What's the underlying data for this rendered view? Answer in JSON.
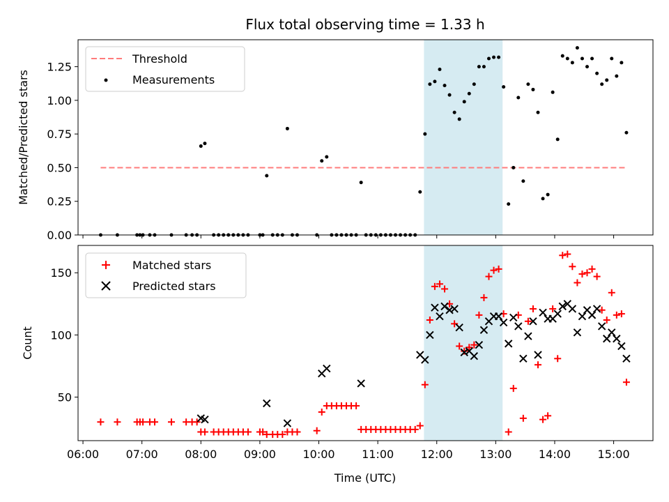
{
  "chart_data": [
    {
      "type": "scatter",
      "title": "Flux total observing time = 1.33 h",
      "ylabel": "Matched/Predicted stars",
      "xlim": [
        "05:55",
        "15:40"
      ],
      "ylim": [
        0,
        1.45
      ],
      "yticks": [
        "0.00",
        "0.25",
        "0.50",
        "0.75",
        "1.00",
        "1.25"
      ],
      "highlight_span": {
        "x_start": "11:47",
        "x_end": "13:07",
        "color": "#add8e6"
      },
      "legend": {
        "position": "top-left",
        "entries": [
          "Threshold",
          "Measurements"
        ]
      },
      "threshold": {
        "name": "Threshold",
        "y": 0.5,
        "x_start": "06:18",
        "x_end": "15:12",
        "color": "#ff7b7b"
      },
      "series": [
        {
          "name": "Measurements",
          "color": "#000000",
          "points": [
            [
              "06:18",
              0
            ],
            [
              "06:35",
              0
            ],
            [
              "06:55",
              0
            ],
            [
              "06:58",
              0
            ],
            [
              "07:01",
              0
            ],
            [
              "07:08",
              0
            ],
            [
              "07:13",
              0
            ],
            [
              "07:30",
              0
            ],
            [
              "07:45",
              0
            ],
            [
              "07:51",
              0
            ],
            [
              "07:56",
              0
            ],
            [
              "08:00",
              0.66
            ],
            [
              "08:04",
              0.68
            ],
            [
              "08:13",
              0
            ],
            [
              "08:18",
              0
            ],
            [
              "08:23",
              0
            ],
            [
              "08:28",
              0
            ],
            [
              "08:33",
              0
            ],
            [
              "08:38",
              0
            ],
            [
              "08:43",
              0
            ],
            [
              "08:48",
              0
            ],
            [
              "09:00",
              0
            ],
            [
              "09:03",
              0
            ],
            [
              "09:07",
              0.44
            ],
            [
              "09:13",
              0
            ],
            [
              "09:18",
              0
            ],
            [
              "09:23",
              0
            ],
            [
              "09:28",
              0.79
            ],
            [
              "09:33",
              0
            ],
            [
              "09:38",
              0
            ],
            [
              "09:58",
              0
            ],
            [
              "10:03",
              0.55
            ],
            [
              "10:08",
              0.58
            ],
            [
              "10:13",
              0
            ],
            [
              "10:18",
              0
            ],
            [
              "10:23",
              0
            ],
            [
              "10:28",
              0
            ],
            [
              "10:33",
              0
            ],
            [
              "10:38",
              0
            ],
            [
              "10:43",
              0.39
            ],
            [
              "10:48",
              0
            ],
            [
              "10:53",
              0
            ],
            [
              "10:58",
              0
            ],
            [
              "11:03",
              0
            ],
            [
              "11:08",
              0
            ],
            [
              "11:13",
              0
            ],
            [
              "11:18",
              0
            ],
            [
              "11:23",
              0
            ],
            [
              "11:28",
              0
            ],
            [
              "11:33",
              0
            ],
            [
              "11:38",
              0
            ],
            [
              "11:43",
              0.32
            ],
            [
              "11:48",
              0.75
            ],
            [
              "11:53",
              1.12
            ],
            [
              "11:58",
              1.14
            ],
            [
              "12:03",
              1.23
            ],
            [
              "12:08",
              1.11
            ],
            [
              "12:13",
              1.04
            ],
            [
              "12:18",
              0.91
            ],
            [
              "12:23",
              0.86
            ],
            [
              "12:28",
              0.99
            ],
            [
              "12:33",
              1.05
            ],
            [
              "12:38",
              1.12
            ],
            [
              "12:43",
              1.25
            ],
            [
              "12:48",
              1.25
            ],
            [
              "12:53",
              1.31
            ],
            [
              "12:58",
              1.32
            ],
            [
              "13:03",
              1.32
            ],
            [
              "13:08",
              1.1
            ],
            [
              "13:13",
              0.23
            ],
            [
              "13:18",
              0.5
            ],
            [
              "13:23",
              1.02
            ],
            [
              "13:28",
              0.4
            ],
            [
              "13:33",
              1.12
            ],
            [
              "13:38",
              1.08
            ],
            [
              "13:43",
              0.91
            ],
            [
              "13:48",
              0.27
            ],
            [
              "13:53",
              0.3
            ],
            [
              "13:58",
              1.06
            ],
            [
              "14:03",
              0.71
            ],
            [
              "14:08",
              1.33
            ],
            [
              "14:13",
              1.31
            ],
            [
              "14:18",
              1.28
            ],
            [
              "14:23",
              1.39
            ],
            [
              "14:28",
              1.31
            ],
            [
              "14:33",
              1.25
            ],
            [
              "14:38",
              1.31
            ],
            [
              "14:43",
              1.2
            ],
            [
              "14:48",
              1.12
            ],
            [
              "14:53",
              1.15
            ],
            [
              "14:58",
              1.31
            ],
            [
              "15:03",
              1.18
            ],
            [
              "15:08",
              1.28
            ],
            [
              "15:13",
              0.76
            ]
          ]
        }
      ]
    },
    {
      "type": "scatter",
      "xlabel": "Time (UTC)",
      "ylabel": "Count",
      "xlim": [
        "05:55",
        "15:40"
      ],
      "ylim": [
        15,
        172
      ],
      "xticks": [
        "06:00",
        "07:00",
        "08:00",
        "09:00",
        "10:00",
        "11:00",
        "12:00",
        "13:00",
        "14:00",
        "15:00"
      ],
      "yticks": [
        "50",
        "100",
        "150"
      ],
      "highlight_span": {
        "x_start": "11:47",
        "x_end": "13:07",
        "color": "#add8e6"
      },
      "legend": {
        "position": "top-left",
        "entries": [
          "Matched stars",
          "Predicted stars"
        ]
      },
      "series": [
        {
          "name": "Matched stars",
          "marker": "+",
          "color": "#ff0000",
          "points": [
            [
              "06:18",
              30
            ],
            [
              "06:35",
              30
            ],
            [
              "06:55",
              30
            ],
            [
              "06:58",
              30
            ],
            [
              "07:01",
              30
            ],
            [
              "07:08",
              30
            ],
            [
              "07:13",
              30
            ],
            [
              "07:30",
              30
            ],
            [
              "07:45",
              30
            ],
            [
              "07:51",
              30
            ],
            [
              "07:56",
              30
            ],
            [
              "08:00",
              22
            ],
            [
              "08:04",
              22
            ],
            [
              "08:13",
              22
            ],
            [
              "08:18",
              22
            ],
            [
              "08:23",
              22
            ],
            [
              "08:28",
              22
            ],
            [
              "08:33",
              22
            ],
            [
              "08:38",
              22
            ],
            [
              "08:43",
              22
            ],
            [
              "08:48",
              22
            ],
            [
              "09:00",
              22
            ],
            [
              "09:03",
              22
            ],
            [
              "09:07",
              20
            ],
            [
              "09:13",
              20
            ],
            [
              "09:18",
              20
            ],
            [
              "09:23",
              20
            ],
            [
              "09:28",
              22
            ],
            [
              "09:33",
              22
            ],
            [
              "09:38",
              22
            ],
            [
              "09:58",
              23
            ],
            [
              "10:03",
              38
            ],
            [
              "10:08",
              43
            ],
            [
              "10:13",
              43
            ],
            [
              "10:18",
              43
            ],
            [
              "10:23",
              43
            ],
            [
              "10:28",
              43
            ],
            [
              "10:33",
              43
            ],
            [
              "10:38",
              43
            ],
            [
              "10:43",
              24
            ],
            [
              "10:48",
              24
            ],
            [
              "10:53",
              24
            ],
            [
              "10:58",
              24
            ],
            [
              "11:03",
              24
            ],
            [
              "11:08",
              24
            ],
            [
              "11:13",
              24
            ],
            [
              "11:18",
              24
            ],
            [
              "11:23",
              24
            ],
            [
              "11:28",
              24
            ],
            [
              "11:33",
              24
            ],
            [
              "11:38",
              24
            ],
            [
              "11:43",
              27
            ],
            [
              "11:48",
              60
            ],
            [
              "11:53",
              112
            ],
            [
              "11:58",
              139
            ],
            [
              "12:03",
              141
            ],
            [
              "12:08",
              137
            ],
            [
              "12:13",
              125
            ],
            [
              "12:18",
              109
            ],
            [
              "12:23",
              91
            ],
            [
              "12:28",
              87
            ],
            [
              "12:33",
              90
            ],
            [
              "12:38",
              92
            ],
            [
              "12:43",
              116
            ],
            [
              "12:48",
              130
            ],
            [
              "12:53",
              147
            ],
            [
              "12:58",
              152
            ],
            [
              "13:03",
              153
            ],
            [
              "13:08",
              117
            ],
            [
              "13:13",
              22
            ],
            [
              "13:18",
              57
            ],
            [
              "13:23",
              116
            ],
            [
              "13:28",
              33
            ],
            [
              "13:33",
              111
            ],
            [
              "13:38",
              121
            ],
            [
              "13:43",
              76
            ],
            [
              "13:48",
              32
            ],
            [
              "13:53",
              35
            ],
            [
              "13:58",
              121
            ],
            [
              "14:03",
              81
            ],
            [
              "14:08",
              164
            ],
            [
              "14:13",
              165
            ],
            [
              "14:18",
              155
            ],
            [
              "14:23",
              142
            ],
            [
              "14:28",
              149
            ],
            [
              "14:33",
              150
            ],
            [
              "14:38",
              153
            ],
            [
              "14:43",
              147
            ],
            [
              "14:48",
              120
            ],
            [
              "14:53",
              112
            ],
            [
              "14:58",
              134
            ],
            [
              "15:03",
              116
            ],
            [
              "15:08",
              117
            ],
            [
              "15:13",
              62
            ]
          ]
        },
        {
          "name": "Predicted stars",
          "marker": "x",
          "color": "#000000",
          "points": [
            [
              "08:00",
              33
            ],
            [
              "08:04",
              32
            ],
            [
              "09:07",
              45
            ],
            [
              "09:28",
              29
            ],
            [
              "10:03",
              69
            ],
            [
              "10:08",
              73
            ],
            [
              "10:43",
              61
            ],
            [
              "11:43",
              84
            ],
            [
              "11:48",
              80
            ],
            [
              "11:53",
              100
            ],
            [
              "11:58",
              122
            ],
            [
              "12:03",
              115
            ],
            [
              "12:08",
              123
            ],
            [
              "12:13",
              120
            ],
            [
              "12:18",
              121
            ],
            [
              "12:23",
              106
            ],
            [
              "12:28",
              86
            ],
            [
              "12:33",
              87
            ],
            [
              "12:38",
              83
            ],
            [
              "12:43",
              92
            ],
            [
              "12:48",
              104
            ],
            [
              "12:53",
              111
            ],
            [
              "12:58",
              115
            ],
            [
              "13:03",
              115
            ],
            [
              "13:08",
              110
            ],
            [
              "13:13",
              93
            ],
            [
              "13:18",
              114
            ],
            [
              "13:23",
              107
            ],
            [
              "13:28",
              81
            ],
            [
              "13:33",
              99
            ],
            [
              "13:38",
              111
            ],
            [
              "13:43",
              84
            ],
            [
              "13:48",
              118
            ],
            [
              "13:53",
              113
            ],
            [
              "13:58",
              113
            ],
            [
              "14:03",
              117
            ],
            [
              "14:08",
              123
            ],
            [
              "14:13",
              125
            ],
            [
              "14:18",
              121
            ],
            [
              "14:23",
              102
            ],
            [
              "14:28",
              115
            ],
            [
              "14:33",
              120
            ],
            [
              "14:38",
              116
            ],
            [
              "14:43",
              121
            ],
            [
              "14:48",
              107
            ],
            [
              "14:53",
              97
            ],
            [
              "14:58",
              102
            ],
            [
              "15:03",
              97
            ],
            [
              "15:08",
              91
            ],
            [
              "15:13",
              81
            ]
          ]
        }
      ]
    }
  ]
}
